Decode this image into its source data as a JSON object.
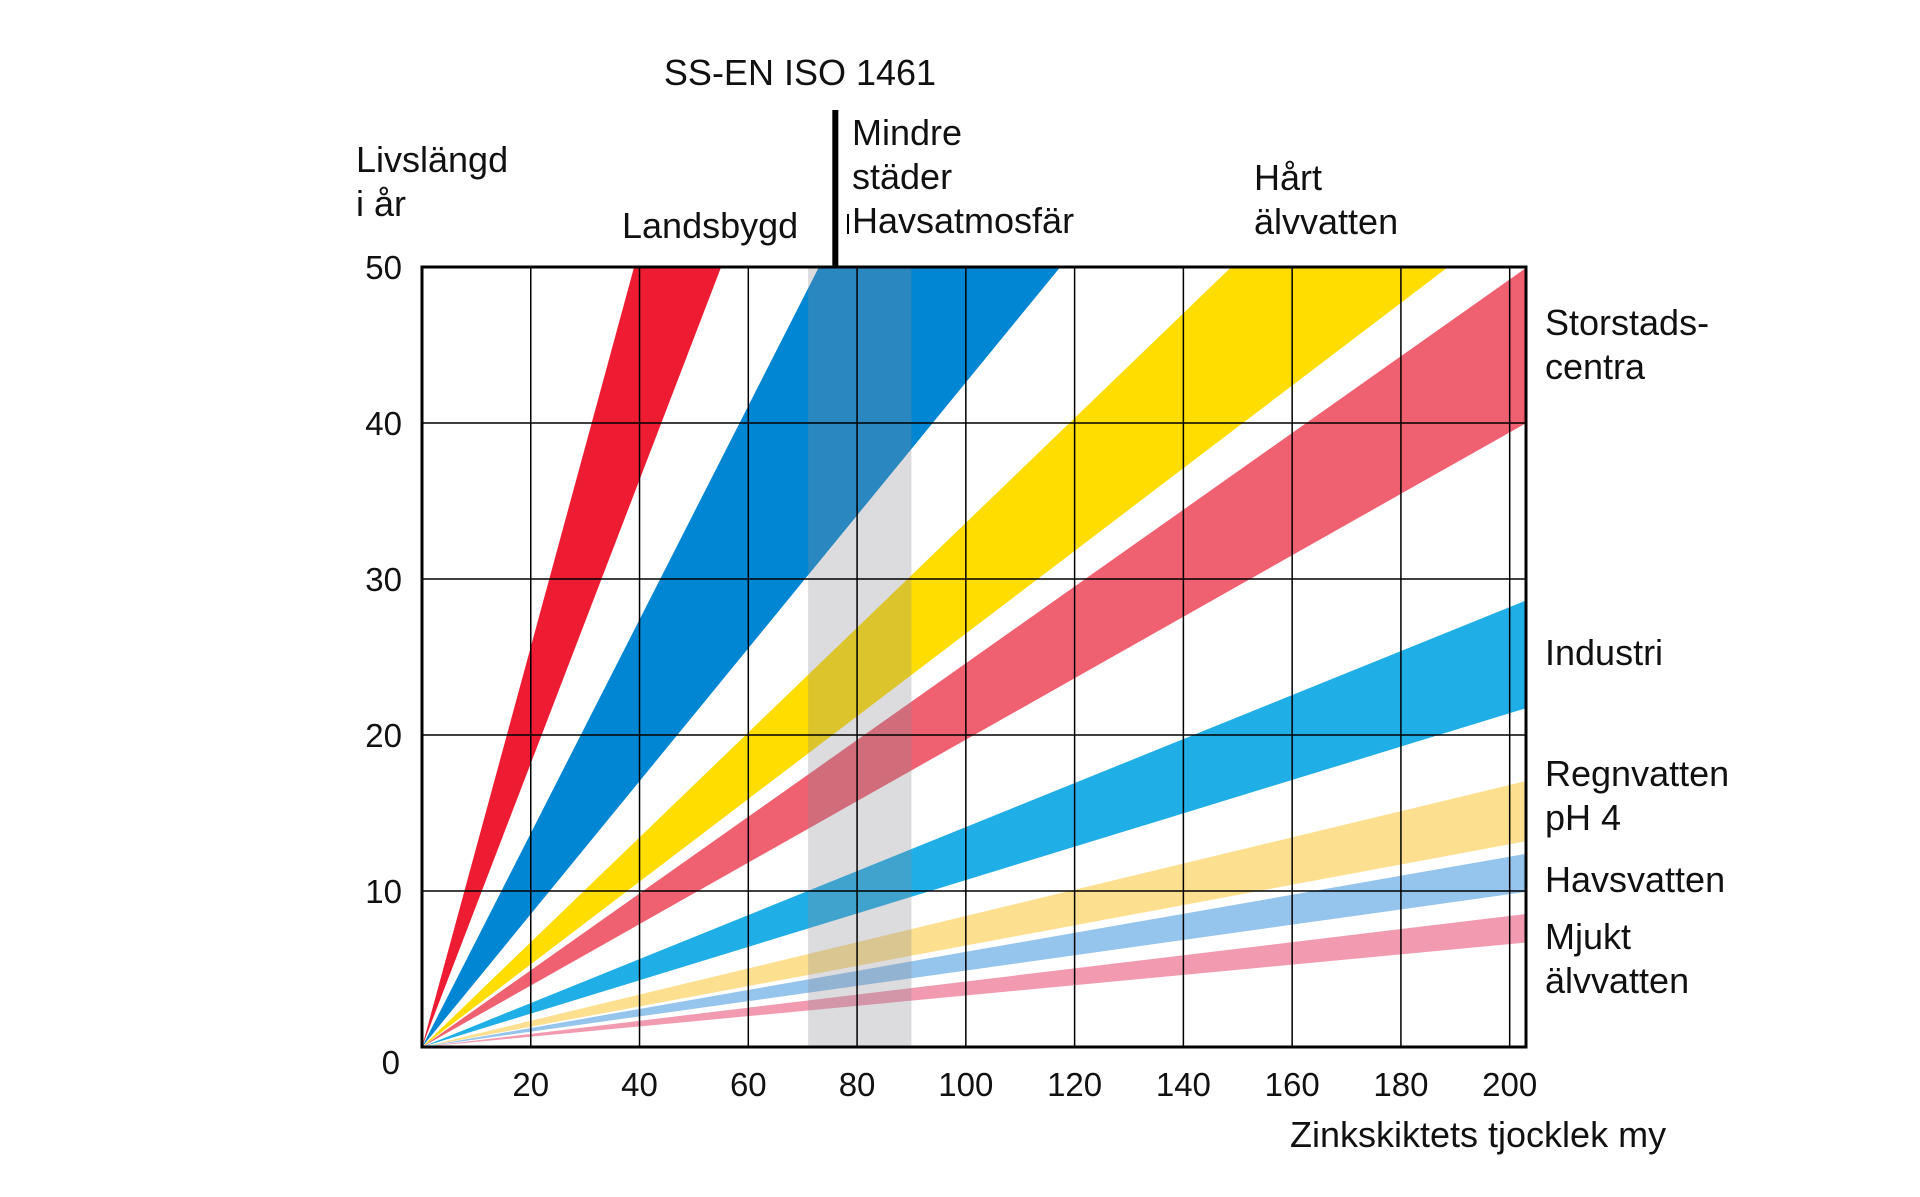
{
  "chart_data": {
    "type": "area",
    "title": "",
    "xlabel": "Zinkskiktets tjocklek my",
    "ylabel_lines": [
      "Livslängd",
      "i år"
    ],
    "xlim": [
      0,
      203
    ],
    "ylim": [
      0,
      50
    ],
    "x_ticks": [
      "20",
      "40",
      "60",
      "80",
      "100",
      "120",
      "140",
      "160",
      "180",
      "200"
    ],
    "y_ticks": [
      "0",
      "10",
      "20",
      "30",
      "40",
      "50"
    ],
    "grid": true,
    "standard_band": {
      "label": "SS-EN ISO 1461",
      "x_range": [
        71,
        90
      ],
      "marker_x": 76
    },
    "series": [
      {
        "name_lines": [
          "Landsbygd"
        ],
        "color": "#ee1c33",
        "opacity": 1.0,
        "lower_rate": 0.909,
        "upper_rate": 1.282
      },
      {
        "name_lines": [
          "Mindre",
          "städer",
          "Havsatmosfär"
        ],
        "color": "#0086d2",
        "opacity": 1.0,
        "lower_rate": 0.426,
        "upper_rate": 0.685
      },
      {
        "name_lines": [
          "Hårt",
          "älvvatten"
        ],
        "color": "#ffdd00",
        "opacity": 1.0,
        "lower_rate": 0.265,
        "upper_rate": 0.336
      },
      {
        "name_lines": [
          "Storstads-",
          "centra"
        ],
        "color": "#ef6070",
        "opacity": 1.0,
        "lower_rate": 0.197,
        "upper_rate": 0.246
      },
      {
        "name_lines": [
          "Industri"
        ],
        "color": "#1faee6",
        "opacity": 1.0,
        "lower_rate": 0.107,
        "upper_rate": 0.141
      },
      {
        "name_lines": [
          "Regnvatten",
          "pH 4"
        ],
        "color": "#fde08f",
        "opacity": 1.0,
        "lower_rate": 0.065,
        "upper_rate": 0.084
      },
      {
        "name_lines": [
          "Havsvatten"
        ],
        "color": "#95c4ec",
        "opacity": 1.0,
        "lower_rate": 0.049,
        "upper_rate": 0.061
      },
      {
        "name_lines": [
          "Mjukt",
          "älvvatten"
        ],
        "color": "#f29ab0",
        "opacity": 1.0,
        "lower_rate": 0.033,
        "upper_rate": 0.042
      }
    ]
  }
}
